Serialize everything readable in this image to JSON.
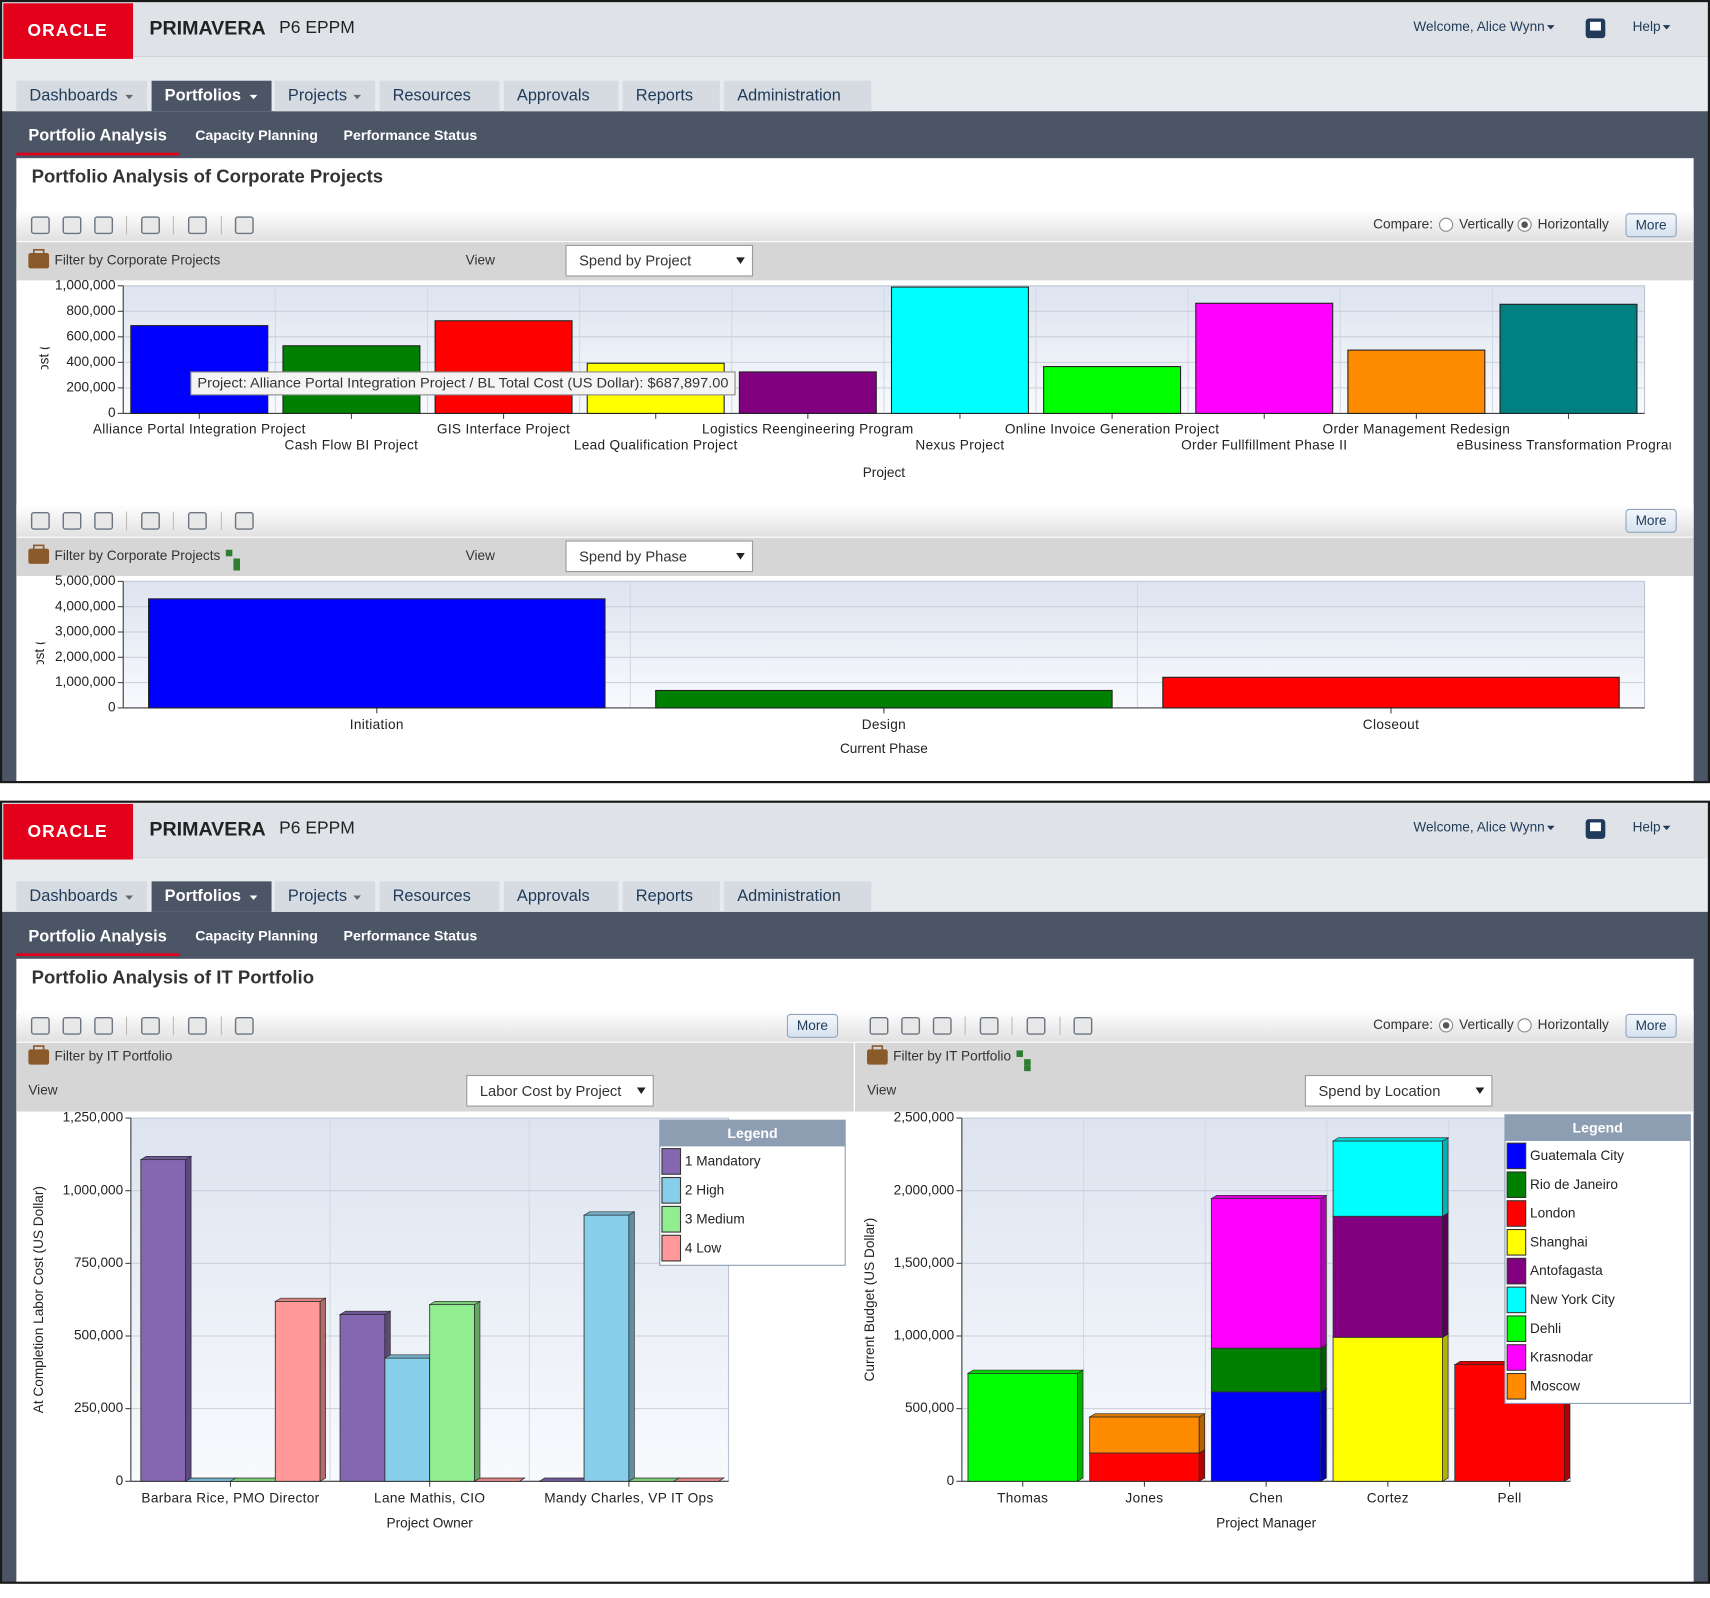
{
  "screens": [
    {
      "header": {
        "logo": "ORACLE",
        "product": "PRIMAVERA",
        "edition": "P6 EPPM",
        "welcome": "Welcome, Alice Wynn",
        "help": "Help"
      },
      "tabs": [
        "Dashboards",
        "Portfolios",
        "Projects",
        "Resources",
        "Approvals",
        "Reports",
        "Administration"
      ],
      "subtabs": [
        "Portfolio Analysis",
        "Capacity Planning",
        "Performance Status"
      ],
      "title": "Portfolio Analysis of Corporate Projects",
      "compare": {
        "label": "Compare:",
        "options": [
          "Vertically",
          "Horizontally"
        ],
        "selected": 1
      },
      "panels": [
        {
          "more": "More",
          "filter": "Filter by Corporate Projects",
          "view_label": "View",
          "view": "Spend by Project",
          "chart": {
            "type": "bar",
            "x_label": "Project",
            "y_label": "BL Total Cost (US Dollar)",
            "categories": [
              "Alliance Portal Integration Project",
              "Cash Flow BI Project",
              "GIS Interface Project",
              "Lead Qualification Project",
              "Logistics Reengineering Program",
              "Nexus Project",
              "Online Invoice Generation Project",
              "Order Fullfillment Phase II",
              "Order Management Redesign",
              "eBusiness Transformation Program"
            ],
            "values": [
              687897,
              530000,
              726000,
              393000,
              325000,
              990000,
              367000,
              863000,
              496000,
              855000
            ],
            "colors": [
              "#0000ff",
              "#008000",
              "#ff0000",
              "#ffff00",
              "#800080",
              "#00ffff",
              "#00ff00",
              "#ff00ff",
              "#ff8c00",
              "#008080"
            ],
            "ylim": [
              0,
              1000000
            ],
            "yticks": [
              0,
              {
                "value": 200000,
                "label": "200,000"
              },
              {
                "value": 400000,
                "label": "400,000"
              },
              {
                "value": 600000,
                "label": "600,000"
              },
              {
                "value": 800000,
                "label": "800,000"
              },
              {
                "value": 1000000,
                "label": "1,000,000"
              }
            ],
            "tooltip": "Project: Alliance Portal Integration Project / BL Total Cost (US Dollar): $687,897.00"
          }
        },
        {
          "more": "More",
          "filter": "Filter by Corporate Projects",
          "view_label": "View",
          "view": "Spend by Phase",
          "chart": {
            "type": "bar",
            "x_label": "Current Phase",
            "y_label": "BL Total Cost (US Dollar)",
            "categories": [
              "Initiation",
              "Design",
              "Closeout"
            ],
            "values": [
              4310000,
              690000,
              1210000
            ],
            "colors": [
              "#0000ff",
              "#008000",
              "#ff0000"
            ],
            "ylim": [
              0,
              5000000
            ],
            "yticks": [
              0,
              {
                "value": 1000000,
                "label": "1,000,000"
              },
              {
                "value": 2000000,
                "label": "2,000,000"
              },
              {
                "value": 3000000,
                "label": "3,000,000"
              },
              {
                "value": 4000000,
                "label": "4,000,000"
              },
              {
                "value": 5000000,
                "label": "5,000,000"
              }
            ]
          }
        }
      ]
    },
    {
      "header": {
        "logo": "ORACLE",
        "product": "PRIMAVERA",
        "edition": "P6 EPPM",
        "welcome": "Welcome, Alice Wynn",
        "help": "Help"
      },
      "tabs": [
        "Dashboards",
        "Portfolios",
        "Projects",
        "Resources",
        "Approvals",
        "Reports",
        "Administration"
      ],
      "subtabs": [
        "Portfolio Analysis",
        "Capacity Planning",
        "Performance Status"
      ],
      "title": "Portfolio Analysis of IT Portfolio",
      "compare": {
        "label": "Compare:",
        "options": [
          "Vertically",
          "Horizontally"
        ],
        "selected": 0
      },
      "panels": [
        {
          "more": "More",
          "filter": "Filter by IT Portfolio",
          "view_label": "View",
          "view": "Labor Cost by Project",
          "chart": {
            "type": "grouped_bar",
            "x_label": "Project Owner",
            "y_label": "At Completion Labor Cost (US Dollar)",
            "legend_title": "Legend",
            "categories": [
              "Barbara Rice, PMO Director",
              "Lane Mathis, CIO",
              "Mandy Charles, VP IT Ops"
            ],
            "series": [
              {
                "name": "1 Mandatory",
                "color": "#8467b0",
                "values": [
                  1107000,
                  574000,
                  0
                ]
              },
              {
                "name": "2 High",
                "color": "#87ceeb",
                "values": [
                  0,
                  424000,
                  916000
                ]
              },
              {
                "name": "3 Medium",
                "color": "#90ee90",
                "values": [
                  0,
                  608000,
                  0
                ]
              },
              {
                "name": "4 Low",
                "color": "#ff9999",
                "values": [
                  619000,
                  0,
                  0
                ]
              }
            ],
            "ylim": [
              0,
              1250000
            ],
            "yticks": [
              0,
              {
                "value": 250000,
                "label": "250,000"
              },
              {
                "value": 500000,
                "label": "500,000"
              },
              {
                "value": 750000,
                "label": "750,000"
              },
              {
                "value": 1000000,
                "label": "1,000,000"
              },
              {
                "value": 1250000,
                "label": "1,250,000"
              }
            ]
          }
        },
        {
          "more": "More",
          "filter": "Filter by IT Portfolio",
          "view_label": "View",
          "view": "Spend by Location",
          "chart": {
            "type": "stacked_bar",
            "x_label": "Project Manager",
            "y_label": "Current Budget (US Dollar)",
            "legend_title": "Legend",
            "categories": [
              "Thomas",
              "Jones",
              "Chen",
              "Cortez",
              "Pell"
            ],
            "series": [
              {
                "name": "Guatemala City",
                "color": "#0000ff",
                "values": [
                  0,
                  0,
                  616000,
                  0,
                  0
                ]
              },
              {
                "name": "Rio de Janeiro",
                "color": "#008000",
                "values": [
                  0,
                  0,
                  300000,
                  0,
                  0
                ]
              },
              {
                "name": "London",
                "color": "#ff0000",
                "values": [
                  0,
                  195000,
                  0,
                  0,
                  803000
                ]
              },
              {
                "name": "Shanghai",
                "color": "#ffff00",
                "values": [
                  0,
                  0,
                  0,
                  991000,
                  0
                ]
              },
              {
                "name": "Antofagasta",
                "color": "#800080",
                "values": [
                  0,
                  0,
                  0,
                  833000,
                  0
                ]
              },
              {
                "name": "New York City",
                "color": "#00ffff",
                "values": [
                  0,
                  0,
                  0,
                  518000,
                  0
                ]
              },
              {
                "name": "Dehli",
                "color": "#00ff00",
                "values": [
                  743000,
                  0,
                  0,
                  0,
                  0
                ]
              },
              {
                "name": "Krasnodar",
                "color": "#ff00ff",
                "values": [
                  0,
                  0,
                  1030000,
                  0,
                  0
                ]
              },
              {
                "name": "Moscow",
                "color": "#ff8c00",
                "values": [
                  0,
                  248000,
                  0,
                  0,
                  0
                ]
              }
            ],
            "ylim": [
              0,
              2500000
            ],
            "yticks": [
              0,
              {
                "value": 500000,
                "label": "500,000"
              },
              {
                "value": 1000000,
                "label": "1,000,000"
              },
              {
                "value": 1500000,
                "label": "1,500,000"
              },
              {
                "value": 2000000,
                "label": "2,000,000"
              },
              {
                "value": 2500000,
                "label": "2,500,000"
              }
            ]
          }
        }
      ]
    }
  ]
}
